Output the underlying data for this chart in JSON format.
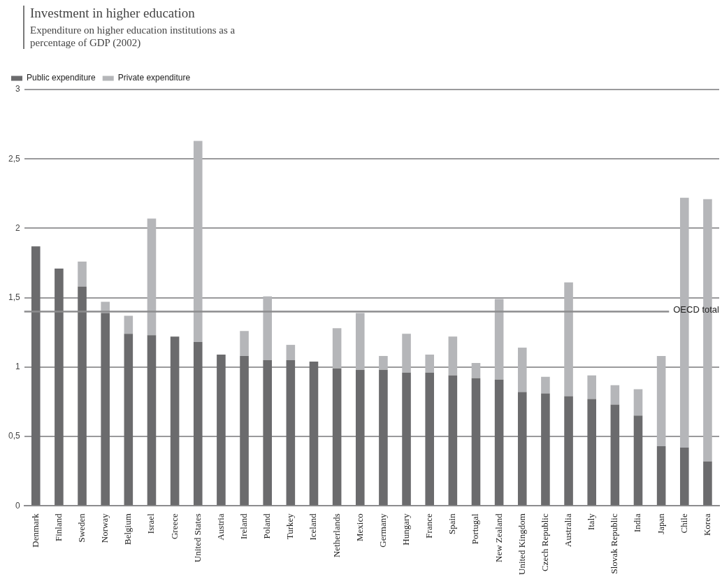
{
  "chart_data": {
    "type": "bar",
    "title": "Investment in higher education",
    "subtitle": "Expenditure on higher education institutions as a percentage of GDP (2002)",
    "categories": [
      "Denmark",
      "Finland",
      "Sweden",
      "Norway",
      "Belgium",
      "Israel",
      "Greece",
      "United States",
      "Austria",
      "Ireland",
      "Poland",
      "Turkey",
      "Iceland",
      "Netherlands",
      "Mexico",
      "Germany",
      "Hungary",
      "France",
      "Spain",
      "Portugal",
      "New Zealand",
      "United Kingdom",
      "Czech Republic",
      "Australia",
      "Italy",
      "Slovak Republic",
      "India",
      "Japan",
      "Chile",
      "Korea"
    ],
    "series": [
      {
        "name": "Public expenditure",
        "color": "#6b6b6d",
        "values": [
          1.87,
          1.71,
          1.58,
          1.39,
          1.24,
          1.23,
          1.22,
          1.18,
          1.09,
          1.08,
          1.05,
          1.05,
          1.04,
          0.99,
          0.98,
          0.98,
          0.96,
          0.96,
          0.94,
          0.92,
          0.91,
          0.82,
          0.81,
          0.79,
          0.77,
          0.73,
          0.65,
          0.43,
          0.42,
          0.32
        ]
      },
      {
        "name": "Private expenditure",
        "color": "#b5b6b9",
        "values": [
          null,
          null,
          0.18,
          0.08,
          0.13,
          0.84,
          null,
          1.45,
          null,
          0.18,
          0.46,
          0.11,
          null,
          0.29,
          0.41,
          0.1,
          0.28,
          0.13,
          0.28,
          0.11,
          0.58,
          0.32,
          0.12,
          0.82,
          0.17,
          0.14,
          0.19,
          0.65,
          1.8,
          1.89
        ]
      }
    ],
    "stacked": true,
    "ylim": [
      0,
      3
    ],
    "yticks": [
      0,
      {
        "value": 0.5,
        "label": "0,5"
      },
      1,
      {
        "value": 1.5,
        "label": "1,5"
      },
      2,
      {
        "value": 2.5,
        "label": "2,5"
      },
      3
    ],
    "grid": "y",
    "legend": "top left",
    "ref_lines": [
      {
        "axis": "y",
        "value": 1.4,
        "label": "OECD total",
        "color": "#8c8c8e"
      }
    ]
  }
}
